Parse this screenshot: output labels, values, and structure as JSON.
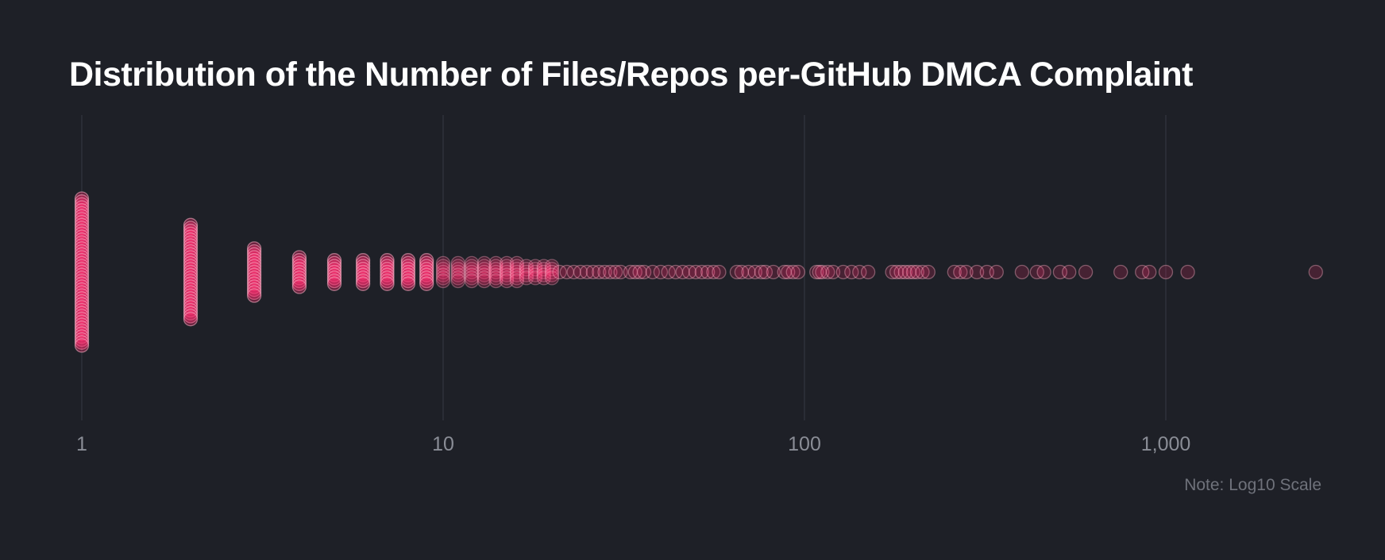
{
  "chart_data": {
    "type": "scatter",
    "title": "Distribution of the Number of Files/Repos per-GitHub DMCA Complaint",
    "x_scale": "log10",
    "x_range": [
      1,
      2500
    ],
    "x_ticks": [
      1,
      10,
      100,
      1000
    ],
    "x_tick_labels": [
      "1",
      "10",
      "100",
      "1,000"
    ],
    "xlabel": "",
    "ylabel": "",
    "grid": "vertical",
    "note": "Note: Log10 Scale",
    "colors": {
      "point_fill": "#ff2d6f",
      "point_stroke": "#ffb3c8",
      "background": "#1e2027",
      "grid": "#33363f"
    },
    "stacks": [
      {
        "x": 1,
        "count": 25
      },
      {
        "x": 2,
        "count": 16
      },
      {
        "x": 3,
        "count": 8
      },
      {
        "x": 4,
        "count": 5
      },
      {
        "x": 5,
        "count": 4
      },
      {
        "x": 6,
        "count": 4
      },
      {
        "x": 7,
        "count": 4
      },
      {
        "x": 8,
        "count": 4
      },
      {
        "x": 9,
        "count": 4
      },
      {
        "x": 10,
        "count": 3
      },
      {
        "x": 11,
        "count": 3
      },
      {
        "x": 12,
        "count": 3
      },
      {
        "x": 13,
        "count": 3
      },
      {
        "x": 14,
        "count": 3
      },
      {
        "x": 15,
        "count": 3
      },
      {
        "x": 16,
        "count": 3
      },
      {
        "x": 17,
        "count": 2
      },
      {
        "x": 18,
        "count": 2
      },
      {
        "x": 19,
        "count": 2
      },
      {
        "x": 20,
        "count": 2
      }
    ],
    "single_values": [
      21,
      22,
      23,
      24,
      25,
      26,
      27,
      28,
      29,
      30,
      31,
      33,
      34,
      35,
      36,
      38,
      40,
      42,
      44,
      46,
      48,
      50,
      52,
      54,
      56,
      58,
      65,
      67,
      70,
      73,
      76,
      78,
      82,
      88,
      90,
      93,
      96,
      108,
      110,
      112,
      116,
      120,
      128,
      135,
      142,
      150,
      175,
      180,
      185,
      190,
      195,
      200,
      205,
      212,
      220,
      260,
      270,
      280,
      300,
      320,
      340,
      400,
      440,
      460,
      510,
      540,
      600,
      750,
      860,
      900,
      1000,
      1150,
      2600
    ]
  }
}
